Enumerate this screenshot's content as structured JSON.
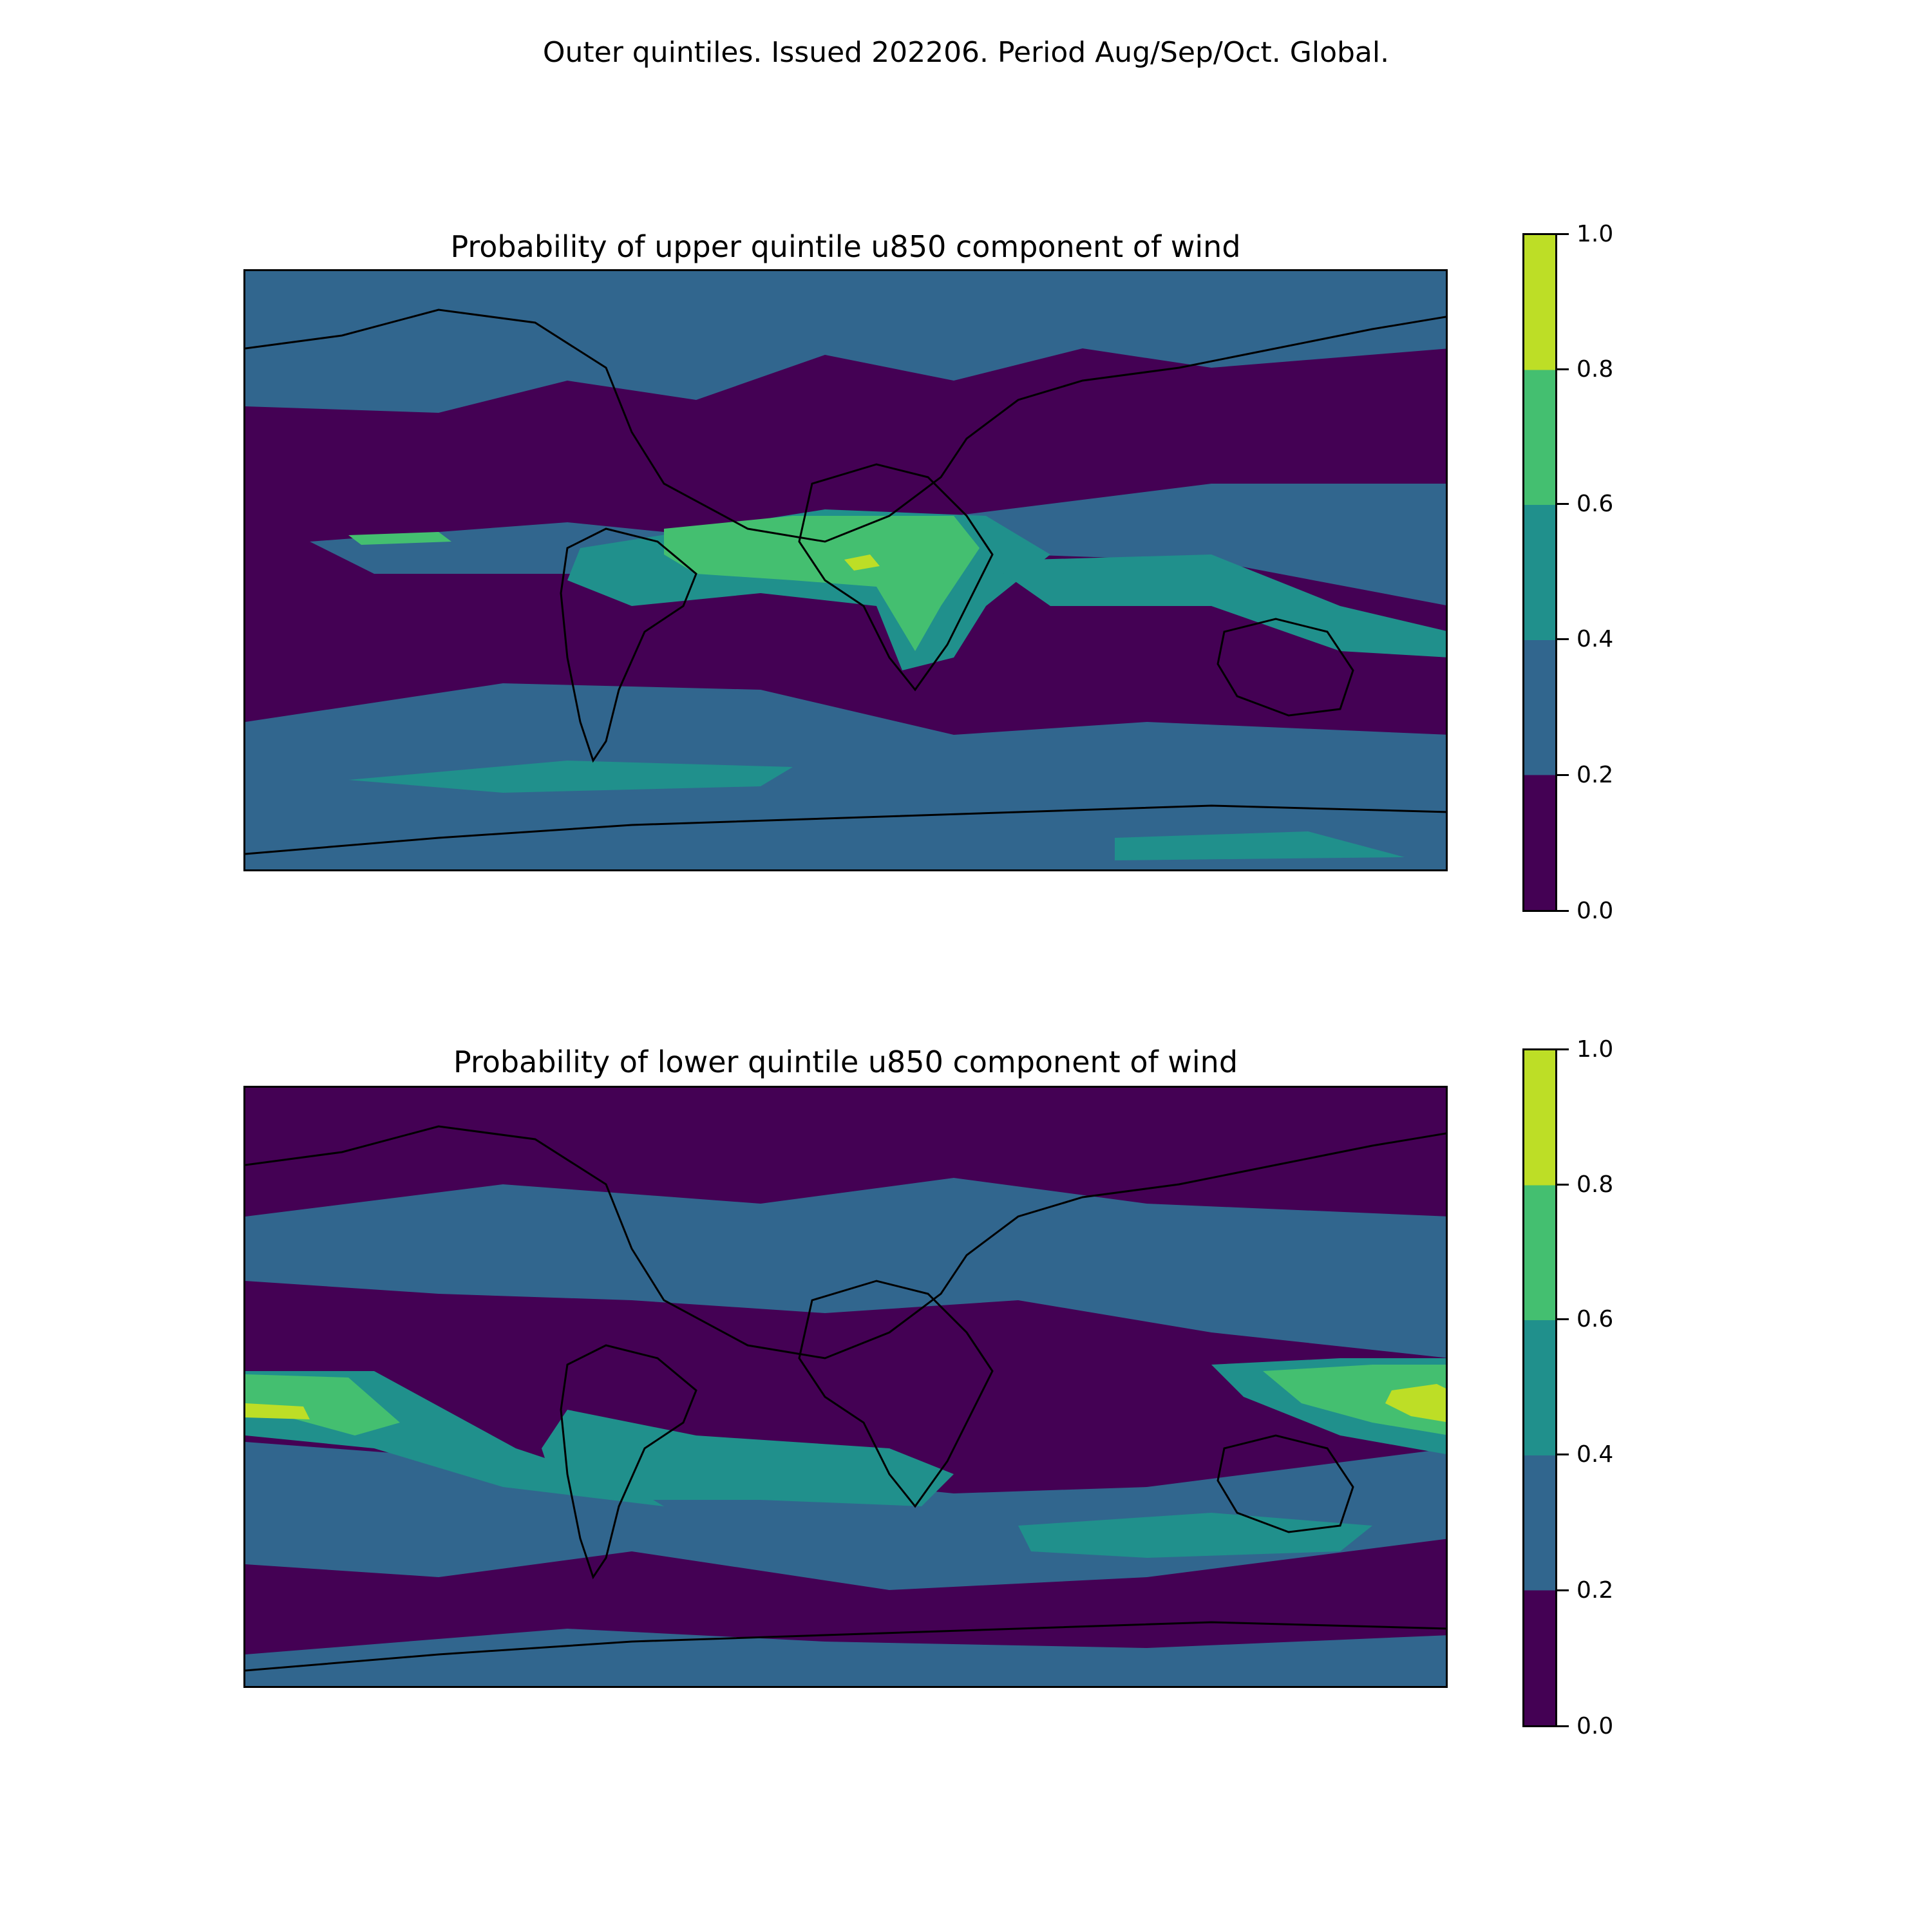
{
  "suptitle": "Outer quintiles. Issued 202206. Period Aug/Sep/Oct. Global.",
  "colormap": {
    "levels": [
      0.0,
      0.2,
      0.4,
      0.6,
      0.8,
      1.0
    ],
    "colors": [
      "#440154",
      "#31668e",
      "#20908c",
      "#44bf70",
      "#bdde26"
    ],
    "tick_labels": [
      "0.0",
      "0.2",
      "0.4",
      "0.6",
      "0.8",
      "1.0"
    ]
  },
  "coastline_color": "#000000",
  "panels": [
    {
      "title": "Probability of upper quintile u850 component of wind",
      "regions": [
        {
          "name": "north-atlantic-arctic-band",
          "level": 0.3
        },
        {
          "name": "south-hemisphere-band",
          "level": 0.3
        },
        {
          "name": "tropical-atlantic-africa",
          "level": 0.5
        },
        {
          "name": "equatorial-africa-core",
          "level": 0.7
        },
        {
          "name": "west-africa-peak",
          "level": 0.9
        },
        {
          "name": "indian-ocean-maritime-continent",
          "level": 0.5
        },
        {
          "name": "southern-ocean-atlantic",
          "level": 0.5
        },
        {
          "name": "antarctic-coast-pacific",
          "level": 0.5
        }
      ]
    },
    {
      "title": "Probability of lower quintile u850 component of wind",
      "regions": [
        {
          "name": "mid-latitude-band-north",
          "level": 0.3
        },
        {
          "name": "southern-band",
          "level": 0.3
        },
        {
          "name": "central-pacific-tropics",
          "level": 0.5
        },
        {
          "name": "central-pacific-core",
          "level": 0.7
        },
        {
          "name": "central-pacific-peak",
          "level": 0.9
        },
        {
          "name": "western-pacific-warm-pool",
          "level": 0.7
        },
        {
          "name": "western-pacific-peak",
          "level": 0.9
        },
        {
          "name": "south-america-atlantic",
          "level": 0.5
        },
        {
          "name": "south-of-australia",
          "level": 0.5
        }
      ]
    }
  ]
}
